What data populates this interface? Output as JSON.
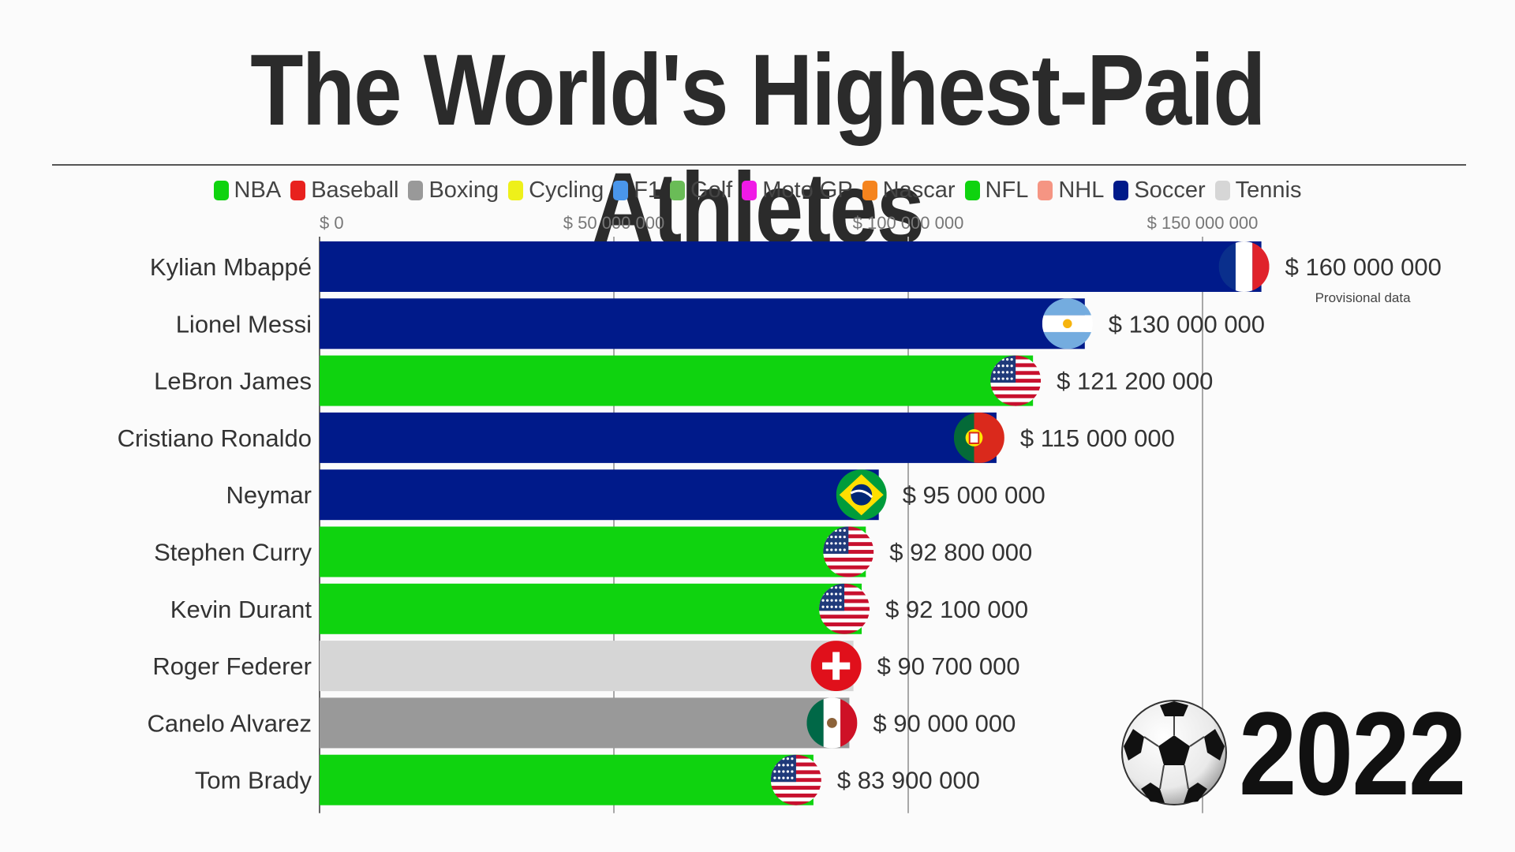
{
  "title": "The World's Highest-Paid Athletes",
  "year": "2022",
  "note": "Provisional data",
  "icons": {
    "ball": "soccer-ball-icon"
  },
  "chart_data": {
    "type": "bar",
    "orientation": "horizontal",
    "title": "The World's Highest-Paid Athletes",
    "xlim": [
      0,
      180000000
    ],
    "xticks": [
      {
        "value": 0,
        "label": "$ 0"
      },
      {
        "value": 50000000,
        "label": "$ 50 000 000"
      },
      {
        "value": 100000000,
        "label": "$ 100 000 000"
      },
      {
        "value": 150000000,
        "label": "$ 150 000 000"
      }
    ],
    "grid": true,
    "legend_position": "top",
    "legend": [
      {
        "name": "NBA",
        "color": "#0fd30f"
      },
      {
        "name": "Baseball",
        "color": "#e8211e"
      },
      {
        "name": "Boxing",
        "color": "#999999"
      },
      {
        "name": "Cycling",
        "color": "#eef01a"
      },
      {
        "name": "F1",
        "color": "#4a96ea"
      },
      {
        "name": "Golf",
        "color": "#6abc57"
      },
      {
        "name": "Moto GP",
        "color": "#f01ae6"
      },
      {
        "name": "Nascar",
        "color": "#f5841e"
      },
      {
        "name": "NFL",
        "color": "#0fd30f"
      },
      {
        "name": "NHL",
        "color": "#f59583"
      },
      {
        "name": "Soccer",
        "color": "#001a8a"
      },
      {
        "name": "Tennis",
        "color": "#d6d6d6"
      }
    ],
    "bars": [
      {
        "name": "Kylian Mbappé",
        "value": 160000000,
        "label": "$ 160 000 000",
        "sport": "Soccer",
        "color": "#001a8a",
        "flag": "france-flag-icon"
      },
      {
        "name": "Lionel Messi",
        "value": 130000000,
        "label": "$ 130 000 000",
        "sport": "Soccer",
        "color": "#001a8a",
        "flag": "argentina-flag-icon"
      },
      {
        "name": "LeBron James",
        "value": 121200000,
        "label": "$ 121 200 000",
        "sport": "NBA",
        "color": "#0fd30f",
        "flag": "usa-flag-icon"
      },
      {
        "name": "Cristiano Ronaldo",
        "value": 115000000,
        "label": "$ 115 000 000",
        "sport": "Soccer",
        "color": "#001a8a",
        "flag": "portugal-flag-icon"
      },
      {
        "name": "Neymar",
        "value": 95000000,
        "label": "$ 95 000 000",
        "sport": "Soccer",
        "color": "#001a8a",
        "flag": "brazil-flag-icon"
      },
      {
        "name": "Stephen Curry",
        "value": 92800000,
        "label": "$ 92 800 000",
        "sport": "NBA",
        "color": "#0fd30f",
        "flag": "usa-flag-icon"
      },
      {
        "name": "Kevin Durant",
        "value": 92100000,
        "label": "$ 92 100 000",
        "sport": "NBA",
        "color": "#0fd30f",
        "flag": "usa-flag-icon"
      },
      {
        "name": "Roger Federer",
        "value": 90700000,
        "label": "$ 90 700 000",
        "sport": "Tennis",
        "color": "#d6d6d6",
        "flag": "switzerland-flag-icon"
      },
      {
        "name": "Canelo Alvarez",
        "value": 90000000,
        "label": "$ 90 000 000",
        "sport": "Boxing",
        "color": "#999999",
        "flag": "mexico-flag-icon"
      },
      {
        "name": "Tom Brady",
        "value": 83900000,
        "label": "$ 83 900 000",
        "sport": "NFL",
        "color": "#0fd30f",
        "flag": "usa-flag-icon"
      }
    ]
  }
}
